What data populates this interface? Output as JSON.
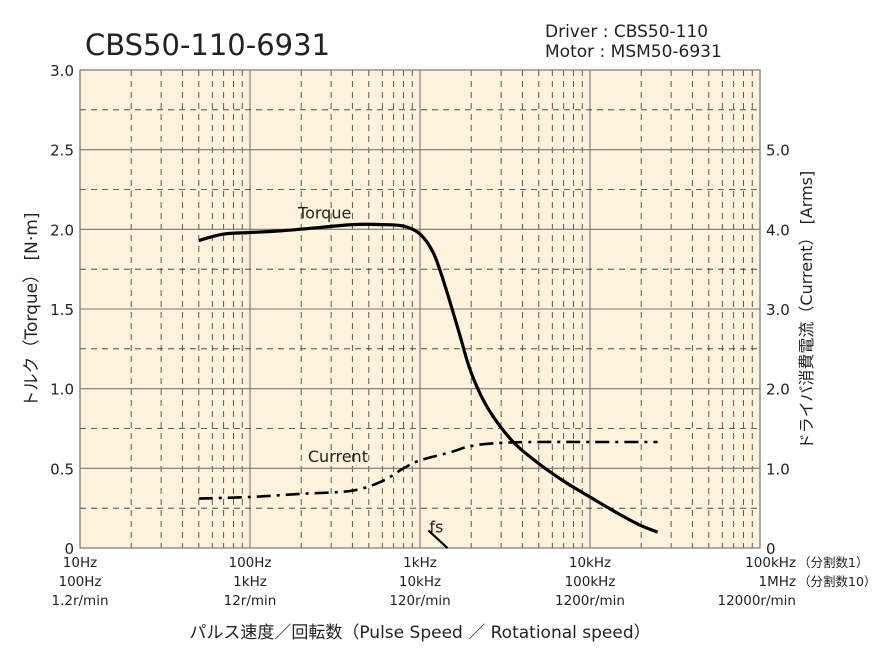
{
  "chart_data": {
    "type": "line",
    "title": "CBS50-110-6931",
    "info": {
      "driver": "Driver : CBS50-110",
      "motor": "Motor : MSM50-6931"
    },
    "xscale": "log",
    "xlim": [
      10,
      100000
    ],
    "x_ticks": [
      {
        "value": 10,
        "labels": [
          "10Hz",
          "100Hz",
          "1.2r/min"
        ]
      },
      {
        "value": 100,
        "labels": [
          "100Hz",
          "1kHz",
          "12r/min"
        ]
      },
      {
        "value": 1000,
        "labels": [
          "1kHz",
          "10kHz",
          "120r/min"
        ]
      },
      {
        "value": 10000,
        "labels": [
          "10kHz",
          "100kHz",
          "1200r/min"
        ]
      },
      {
        "value": 100000,
        "labels": [
          "100kHz",
          "1MHz",
          "12000r/min"
        ]
      }
    ],
    "x_row_suffixes": [
      "（分割数1）",
      "（分割数10）"
    ],
    "xlabel": "パルス速度／回転数（Pulse Speed ／ Rotational speed）",
    "ylabel_left": "トルク（Torque） [N·m]",
    "ylim_left": [
      0,
      3.0
    ],
    "yticks_left": [
      "0",
      "0.5",
      "1.0",
      "1.5",
      "2.0",
      "2.5",
      "3.0"
    ],
    "ylabel_right": "ドライバ消費電流（Current） [Arms]",
    "ylim_right": [
      0,
      6.0
    ],
    "yticks_right": [
      "0",
      "1.0",
      "2.0",
      "3.0",
      "4.0",
      "5.0"
    ],
    "grid": true,
    "background": "#fdf3dd",
    "series": [
      {
        "name": "Torque",
        "axis": "left",
        "style": "solid",
        "color": "#000000",
        "points": [
          [
            50,
            1.93
          ],
          [
            70,
            1.97
          ],
          [
            100,
            1.98
          ],
          [
            150,
            1.99
          ],
          [
            250,
            2.01
          ],
          [
            400,
            2.03
          ],
          [
            600,
            2.03
          ],
          [
            800,
            2.02
          ],
          [
            1000,
            1.97
          ],
          [
            1200,
            1.85
          ],
          [
            1400,
            1.65
          ],
          [
            1700,
            1.35
          ],
          [
            2000,
            1.1
          ],
          [
            2500,
            0.88
          ],
          [
            3500,
            0.67
          ],
          [
            5000,
            0.53
          ],
          [
            7000,
            0.42
          ],
          [
            10000,
            0.32
          ],
          [
            15000,
            0.21
          ],
          [
            20000,
            0.14
          ],
          [
            25000,
            0.1
          ]
        ]
      },
      {
        "name": "Current",
        "axis": "right",
        "style": "dashdot",
        "color": "#000000",
        "points": [
          [
            50,
            0.62
          ],
          [
            100,
            0.64
          ],
          [
            200,
            0.68
          ],
          [
            400,
            0.72
          ],
          [
            600,
            0.84
          ],
          [
            800,
            1.0
          ],
          [
            1000,
            1.1
          ],
          [
            1500,
            1.2
          ],
          [
            2000,
            1.28
          ],
          [
            3000,
            1.32
          ],
          [
            5000,
            1.33
          ],
          [
            10000,
            1.33
          ],
          [
            25000,
            1.33
          ]
        ]
      }
    ],
    "annotations": [
      {
        "text": "Torque",
        "x": 280,
        "y": 2.1
      },
      {
        "text": "Current",
        "x": 320,
        "y": 0.57
      },
      {
        "text": "fs",
        "x": 1300,
        "y": 0.13
      }
    ]
  }
}
